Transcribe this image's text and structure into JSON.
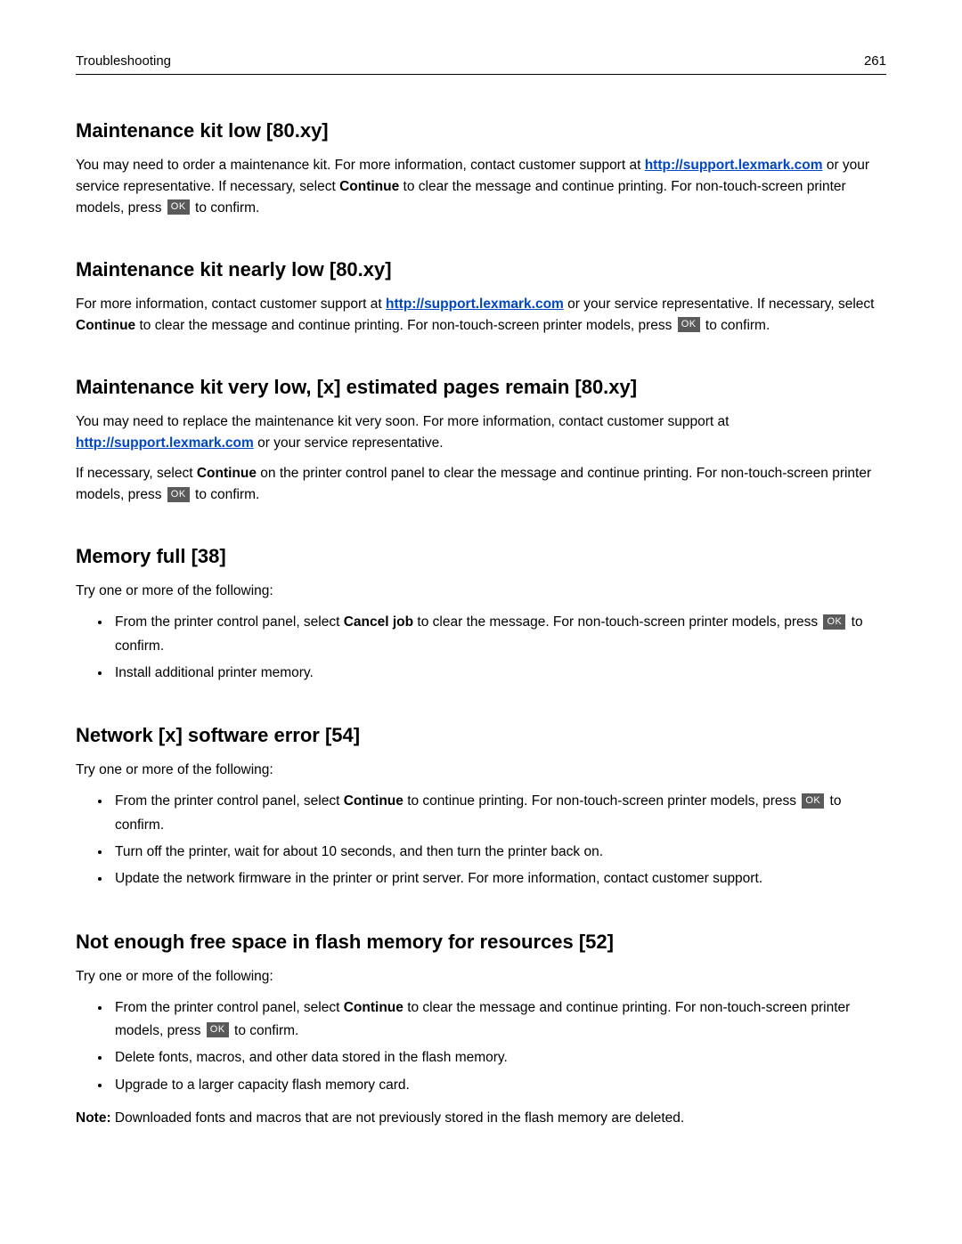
{
  "header": {
    "section": "Troubleshooting",
    "page_number": "261"
  },
  "link": {
    "url_text": "http://support.lexmark.com"
  },
  "ok_label": "OK",
  "bold": {
    "continue": "Continue",
    "cancel_job": "Cancel job",
    "note": "Note:"
  },
  "sections": {
    "s1": {
      "title": "Maintenance kit low [80.xy]",
      "p1a": "You may need to order a maintenance kit. For more information, contact customer support at ",
      "p1b": " or your service representative. If necessary, select ",
      "p1c": " to clear the message and continue printing. For non-touch-screen printer models, press ",
      "p1d": " to confirm."
    },
    "s2": {
      "title": "Maintenance kit nearly low [80.xy]",
      "p1a": "For more information, contact customer support at ",
      "p1b": " or your service representative. If necessary, select ",
      "p1c": " to clear the message and continue printing. For non-touch-screen printer models, press ",
      "p1d": " to confirm."
    },
    "s3": {
      "title": "Maintenance kit very low, [x] estimated pages remain [80.xy]",
      "p1a": "You may need to replace the maintenance kit very soon. For more information, contact customer support at ",
      "p1b": " or your service representative.",
      "p2a": "If necessary, select ",
      "p2b": " on the printer control panel to clear the message and continue printing. For non-touch-screen printer models, press ",
      "p2c": " to confirm."
    },
    "s4": {
      "title": "Memory full [38]",
      "intro": "Try one or more of the following:",
      "li1a": "From the printer control panel, select ",
      "li1b": " to clear the message. For non-touch-screen printer models, press ",
      "li1c": " to confirm.",
      "li2": "Install additional printer memory."
    },
    "s5": {
      "title": "Network [x] software error [54]",
      "intro": "Try one or more of the following:",
      "li1a": "From the printer control panel, select ",
      "li1b": " to continue printing. For non-touch-screen printer models, press ",
      "li1c": " to confirm.",
      "li2": "Turn off the printer, wait for about 10 seconds, and then turn the printer back on.",
      "li3": "Update the network firmware in the printer or print server. For more information, contact customer support."
    },
    "s6": {
      "title": "Not enough free space in flash memory for resources [52]",
      "intro": "Try one or more of the following:",
      "li1a": "From the printer control panel, select ",
      "li1b": " to clear the message and continue printing. For non-touch-screen printer models, press ",
      "li1c": " to confirm.",
      "li2": "Delete fonts, macros, and other data stored in the flash memory.",
      "li3": "Upgrade to a larger capacity flash memory card.",
      "note_text": " Downloaded fonts and macros that are not previously stored in the flash memory are deleted."
    }
  }
}
